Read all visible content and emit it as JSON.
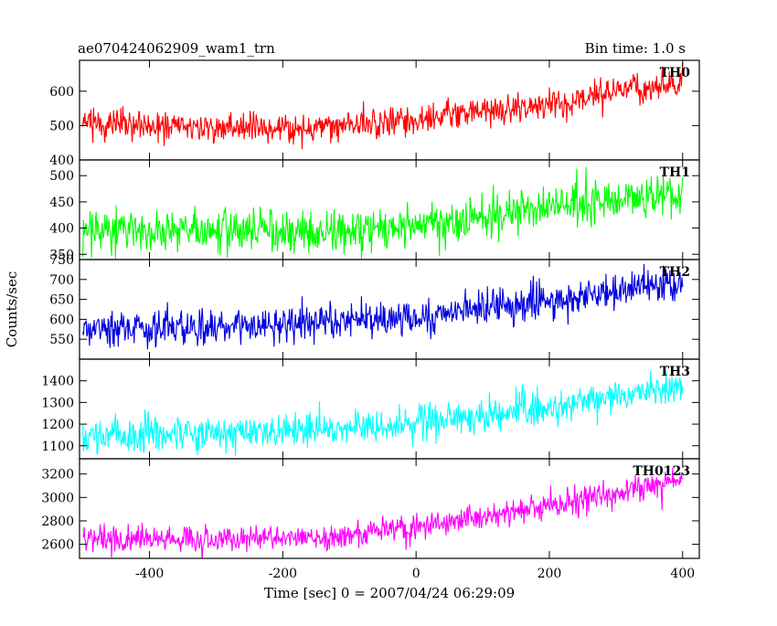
{
  "header": {
    "title": "ae070424062909_wam1_trn",
    "bin_time": "Bin time: 1.0 s"
  },
  "chart_data": {
    "type": "line",
    "title": "ae070424062909_wam1_trn",
    "subtitle": "Bin time: 1.0 s",
    "xlabel": "Time [sec] 0 = 2007/04/24 06:29:09",
    "ylabel": "Counts/sec",
    "xlim": [
      -505,
      425
    ],
    "xticks": [
      -400,
      -200,
      0,
      200,
      400
    ],
    "x_range_data": [
      -500,
      400
    ],
    "bin_seconds": 1.0,
    "panels": [
      {
        "name": "TH0",
        "color": "#ff0000",
        "ylim": [
          400,
          690
        ],
        "yticks": [
          400,
          500,
          600
        ],
        "trend": [
          [
            -500,
            505
          ],
          [
            -300,
            495
          ],
          [
            -150,
            495
          ],
          [
            0,
            520
          ],
          [
            100,
            545
          ],
          [
            200,
            560
          ],
          [
            300,
            600
          ],
          [
            400,
            625
          ]
        ],
        "noise_sd": 22
      },
      {
        "name": "TH1",
        "color": "#00ff00",
        "ylim": [
          340,
          530
        ],
        "yticks": [
          350,
          400,
          450,
          500
        ],
        "trend": [
          [
            -500,
            395
          ],
          [
            -300,
            395
          ],
          [
            -100,
            395
          ],
          [
            0,
            405
          ],
          [
            100,
            415
          ],
          [
            200,
            445
          ],
          [
            300,
            455
          ],
          [
            400,
            460
          ]
        ],
        "noise_sd": 20
      },
      {
        "name": "TH2",
        "color": "#0000e0",
        "ylim": [
          500,
          750
        ],
        "yticks": [
          550,
          600,
          650,
          700,
          750
        ],
        "trend": [
          [
            -500,
            575
          ],
          [
            -300,
            580
          ],
          [
            -100,
            590
          ],
          [
            0,
            605
          ],
          [
            100,
            630
          ],
          [
            200,
            650
          ],
          [
            300,
            670
          ],
          [
            400,
            690
          ]
        ],
        "noise_sd": 22
      },
      {
        "name": "TH3",
        "color": "#00ffff",
        "ylim": [
          1040,
          1500
        ],
        "yticks": [
          1100,
          1200,
          1300,
          1400
        ],
        "trend": [
          [
            -500,
            1140
          ],
          [
            -300,
            1160
          ],
          [
            -100,
            1180
          ],
          [
            0,
            1205
          ],
          [
            100,
            1240
          ],
          [
            200,
            1280
          ],
          [
            300,
            1330
          ],
          [
            400,
            1380
          ]
        ],
        "noise_sd": 40
      },
      {
        "name": "TH0123",
        "color": "#ff00ff",
        "ylim": [
          2480,
          3330
        ],
        "yticks": [
          2600,
          2800,
          3000,
          3200
        ],
        "trend": [
          [
            -500,
            2640
          ],
          [
            -300,
            2650
          ],
          [
            -100,
            2680
          ],
          [
            0,
            2750
          ],
          [
            100,
            2830
          ],
          [
            200,
            2920
          ],
          [
            300,
            3030
          ],
          [
            400,
            3170
          ]
        ],
        "noise_sd": 55
      }
    ]
  }
}
